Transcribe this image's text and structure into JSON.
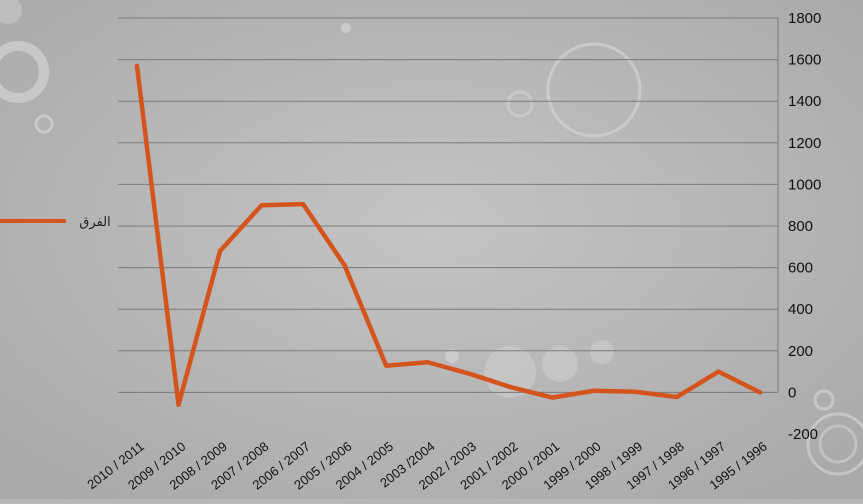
{
  "chart_data": {
    "type": "line",
    "categories": [
      "2010 / 2011",
      "2009 / 2010",
      "2008 / 2009",
      "2007 / 2008",
      "2006 / 2007",
      "2005 / 2006",
      "2004 / 2005",
      "2003 /2004",
      "2002 / 2003",
      "2001 / 2002",
      "2000 / 2001",
      "1999 / 2000",
      "1998 / 1999",
      "1997 / 1998",
      "1996 / 1997",
      "1995 / 1996"
    ],
    "series": [
      {
        "name": "الفرق",
        "color": "#d4541e",
        "values": [
          1570,
          -60,
          680,
          900,
          905,
          610,
          128,
          145,
          90,
          25,
          -25,
          8,
          3,
          -22,
          100,
          0
        ]
      }
    ],
    "title": "",
    "xlabel": "",
    "ylabel": "",
    "ylim": [
      -200,
      1800
    ],
    "y_ticks": [
      1800,
      1600,
      1400,
      1200,
      1000,
      800,
      600,
      400,
      200,
      0,
      -200
    ],
    "y_axis_side": "right",
    "grid": true,
    "legend_position": "left"
  }
}
